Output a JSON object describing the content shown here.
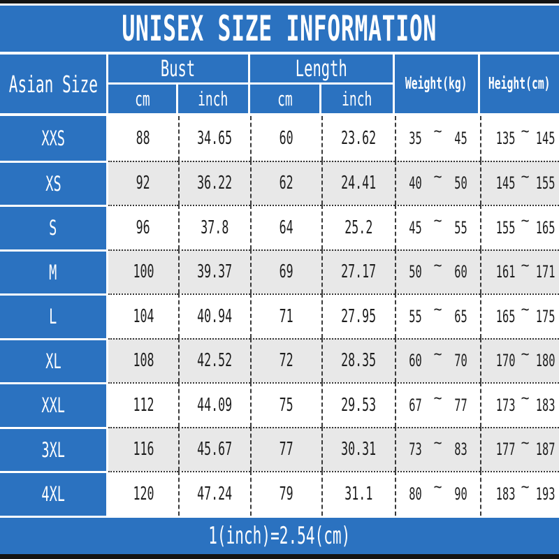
{
  "title": "UNISEX SIZE INFORMATION",
  "colors": {
    "accent_blue": "#2b72c0",
    "alt_row_gray": "#e8e8e8",
    "border_black": "#131313",
    "text_white": "#ffffff",
    "text_dark": "#1d1d1d"
  },
  "symbols": {
    "tilde": "~"
  },
  "header": {
    "asian_size": "Asian Size",
    "bust": "Bust",
    "length": "Length",
    "weight": "Weight(kg)",
    "height": "Height(cm)",
    "cm": "cm",
    "inch": "inch"
  },
  "table": {
    "rows": [
      {
        "size": "XXS",
        "bust_cm": "88",
        "bust_inch": "34.65",
        "length_cm": "60",
        "length_inch": "23.62",
        "weight_min": "35",
        "weight_max": "45",
        "height_min": "135",
        "height_max": "145"
      },
      {
        "size": "XS",
        "bust_cm": "92",
        "bust_inch": "36.22",
        "length_cm": "62",
        "length_inch": "24.41",
        "weight_min": "40",
        "weight_max": "50",
        "height_min": "145",
        "height_max": "155"
      },
      {
        "size": "S",
        "bust_cm": "96",
        "bust_inch": "37.8",
        "length_cm": "64",
        "length_inch": "25.2",
        "weight_min": "45",
        "weight_max": "55",
        "height_min": "155",
        "height_max": "165"
      },
      {
        "size": "M",
        "bust_cm": "100",
        "bust_inch": "39.37",
        "length_cm": "69",
        "length_inch": "27.17",
        "weight_min": "50",
        "weight_max": "60",
        "height_min": "161",
        "height_max": "171"
      },
      {
        "size": "L",
        "bust_cm": "104",
        "bust_inch": "40.94",
        "length_cm": "71",
        "length_inch": "27.95",
        "weight_min": "55",
        "weight_max": "65",
        "height_min": "165",
        "height_max": "175"
      },
      {
        "size": "XL",
        "bust_cm": "108",
        "bust_inch": "42.52",
        "length_cm": "72",
        "length_inch": "28.35",
        "weight_min": "60",
        "weight_max": "70",
        "height_min": "170",
        "height_max": "180"
      },
      {
        "size": "XXL",
        "bust_cm": "112",
        "bust_inch": "44.09",
        "length_cm": "75",
        "length_inch": "29.53",
        "weight_min": "67",
        "weight_max": "77",
        "height_min": "173",
        "height_max": "183"
      },
      {
        "size": "3XL",
        "bust_cm": "116",
        "bust_inch": "45.67",
        "length_cm": "77",
        "length_inch": "30.31",
        "weight_min": "73",
        "weight_max": "83",
        "height_min": "177",
        "height_max": "187"
      },
      {
        "size": "4XL",
        "bust_cm": "120",
        "bust_inch": "47.24",
        "length_cm": "79",
        "length_inch": "31.1",
        "weight_min": "80",
        "weight_max": "90",
        "height_min": "183",
        "height_max": "193"
      }
    ]
  },
  "footer": {
    "note": "1(inch)=2.54(cm)"
  },
  "chart_data": {
    "type": "table",
    "title": "UNISEX SIZE INFORMATION",
    "columns": [
      "Asian Size",
      "Bust cm",
      "Bust inch",
      "Length cm",
      "Length inch",
      "Weight(kg)",
      "Height(cm)"
    ],
    "rows": [
      [
        "XXS",
        "88",
        "34.65",
        "60",
        "23.62",
        "35~45",
        "135~145"
      ],
      [
        "XS",
        "92",
        "36.22",
        "62",
        "24.41",
        "40~50",
        "145~155"
      ],
      [
        "S",
        "96",
        "37.8",
        "64",
        "25.2",
        "45~55",
        "155~165"
      ],
      [
        "M",
        "100",
        "39.37",
        "69",
        "27.17",
        "50~60",
        "161~171"
      ],
      [
        "L",
        "104",
        "40.94",
        "71",
        "27.95",
        "55~65",
        "165~175"
      ],
      [
        "XL",
        "108",
        "42.52",
        "72",
        "28.35",
        "60~70",
        "170~180"
      ],
      [
        "XXL",
        "112",
        "44.09",
        "75",
        "29.53",
        "67~77",
        "173~183"
      ],
      [
        "3XL",
        "116",
        "45.67",
        "77",
        "30.31",
        "73~83",
        "177~187"
      ],
      [
        "4XL",
        "120",
        "47.24",
        "79",
        "31.1",
        "80~90",
        "183~193"
      ]
    ],
    "note": "1(inch)=2.54(cm)"
  }
}
